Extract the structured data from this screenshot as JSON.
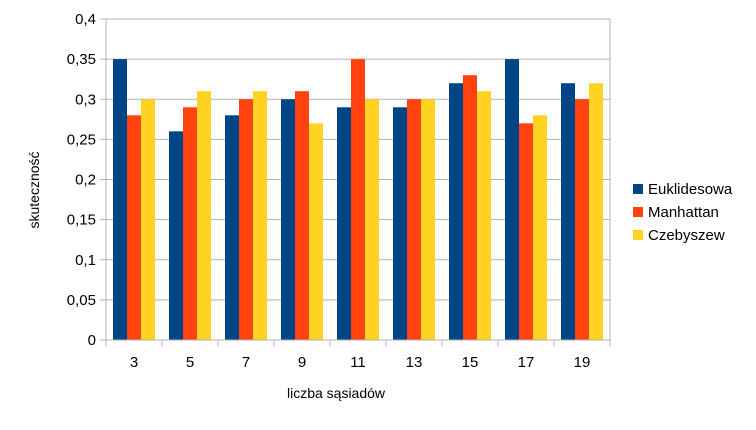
{
  "chart_data": {
    "type": "bar",
    "title": "",
    "xlabel": "liczba sąsiadów",
    "ylabel": "skuteczność",
    "categories": [
      "3",
      "5",
      "7",
      "9",
      "11",
      "13",
      "15",
      "17",
      "19"
    ],
    "ylim": [
      0,
      0.4
    ],
    "yticks": [
      "0",
      "0,05",
      "0,1",
      "0,15",
      "0,2",
      "0,25",
      "0,3",
      "0,35",
      "0,4"
    ],
    "grid": true,
    "legend_position": "right",
    "series": [
      {
        "name": "Euklidesowa",
        "color": "#004586",
        "values": [
          0.35,
          0.26,
          0.28,
          0.3,
          0.29,
          0.29,
          0.32,
          0.35,
          0.32
        ]
      },
      {
        "name": "Manhattan",
        "color": "#ff420e",
        "values": [
          0.28,
          0.29,
          0.3,
          0.31,
          0.35,
          0.3,
          0.33,
          0.27,
          0.3
        ]
      },
      {
        "name": "Czebyszew",
        "color": "#ffd320",
        "values": [
          0.3,
          0.31,
          0.31,
          0.27,
          0.3,
          0.3,
          0.31,
          0.28,
          0.32
        ]
      }
    ]
  }
}
